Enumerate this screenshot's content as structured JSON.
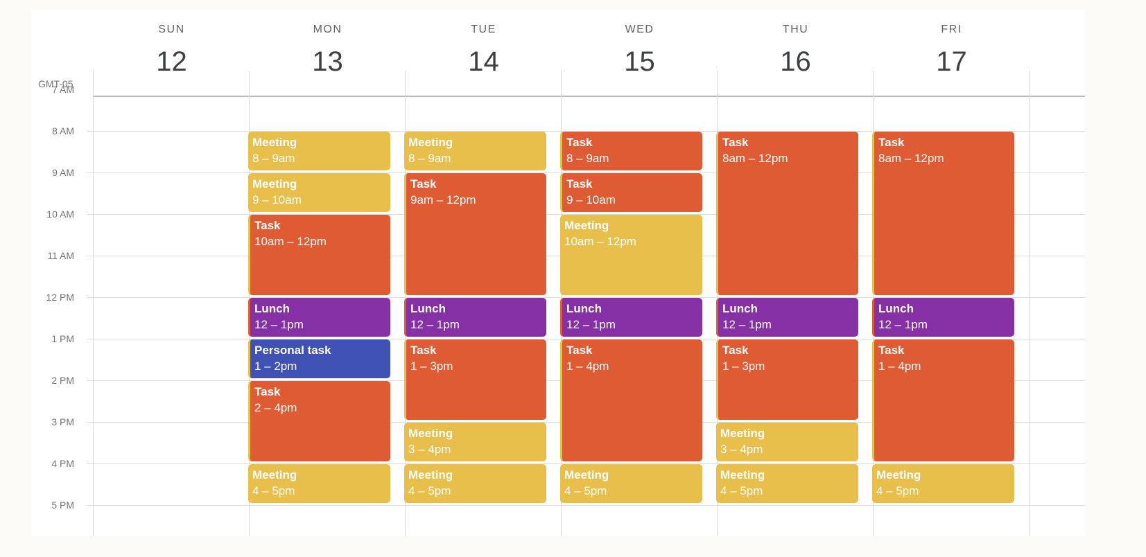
{
  "timezone": "GMT-05",
  "days": [
    {
      "name": "SUN",
      "date": "12"
    },
    {
      "name": "MON",
      "date": "13"
    },
    {
      "name": "TUE",
      "date": "14"
    },
    {
      "name": "WED",
      "date": "15"
    },
    {
      "name": "THU",
      "date": "16"
    },
    {
      "name": "FRI",
      "date": "17"
    }
  ],
  "hours": [
    "7 AM",
    "8 AM",
    "9 AM",
    "10 AM",
    "11 AM",
    "12 PM",
    "1 PM",
    "2 PM",
    "3 PM",
    "4 PM",
    "5 PM"
  ],
  "colors": {
    "meeting": "#e8bf4b",
    "task": "#df5b33",
    "lunch": "#8630a6",
    "personal": "#4051b4"
  },
  "events": [
    {
      "day": 1,
      "start": 8,
      "end": 9,
      "type": "meeting",
      "title": "Meeting",
      "time": "8 – 9am"
    },
    {
      "day": 1,
      "start": 9,
      "end": 10,
      "type": "meeting",
      "title": "Meeting",
      "time": "9 – 10am"
    },
    {
      "day": 1,
      "start": 10,
      "end": 12,
      "type": "task",
      "title": "Task",
      "time": "10am – 12pm"
    },
    {
      "day": 1,
      "start": 12,
      "end": 13,
      "type": "lunch",
      "title": "Lunch",
      "time": "12 – 1pm"
    },
    {
      "day": 1,
      "start": 13,
      "end": 14,
      "type": "personal",
      "title": "Personal task",
      "time": "1 – 2pm"
    },
    {
      "day": 1,
      "start": 14,
      "end": 16,
      "type": "task",
      "title": "Task",
      "time": "2 – 4pm"
    },
    {
      "day": 1,
      "start": 16,
      "end": 17,
      "type": "meeting",
      "title": "Meeting",
      "time": "4 – 5pm"
    },
    {
      "day": 2,
      "start": 8,
      "end": 9,
      "type": "meeting",
      "title": "Meeting",
      "time": "8 – 9am"
    },
    {
      "day": 2,
      "start": 9,
      "end": 12,
      "type": "task",
      "title": "Task",
      "time": "9am – 12pm"
    },
    {
      "day": 2,
      "start": 12,
      "end": 13,
      "type": "lunch",
      "title": "Lunch",
      "time": "12 – 1pm"
    },
    {
      "day": 2,
      "start": 13,
      "end": 15,
      "type": "task",
      "title": "Task",
      "time": "1 – 3pm"
    },
    {
      "day": 2,
      "start": 15,
      "end": 16,
      "type": "meeting",
      "title": "Meeting",
      "time": "3 – 4pm"
    },
    {
      "day": 2,
      "start": 16,
      "end": 17,
      "type": "meeting",
      "title": "Meeting",
      "time": "4 – 5pm"
    },
    {
      "day": 3,
      "start": 8,
      "end": 9,
      "type": "task",
      "title": "Task",
      "time": "8 – 9am"
    },
    {
      "day": 3,
      "start": 9,
      "end": 10,
      "type": "task",
      "title": "Task",
      "time": "9 – 10am"
    },
    {
      "day": 3,
      "start": 10,
      "end": 12,
      "type": "meeting",
      "title": "Meeting",
      "time": "10am – 12pm"
    },
    {
      "day": 3,
      "start": 12,
      "end": 13,
      "type": "lunch",
      "title": "Lunch",
      "time": "12 – 1pm"
    },
    {
      "day": 3,
      "start": 13,
      "end": 16,
      "type": "task",
      "title": "Task",
      "time": "1 – 4pm"
    },
    {
      "day": 3,
      "start": 16,
      "end": 17,
      "type": "meeting",
      "title": "Meeting",
      "time": "4 – 5pm"
    },
    {
      "day": 4,
      "start": 8,
      "end": 12,
      "type": "task",
      "title": "Task",
      "time": "8am – 12pm"
    },
    {
      "day": 4,
      "start": 12,
      "end": 13,
      "type": "lunch",
      "title": "Lunch",
      "time": "12 – 1pm"
    },
    {
      "day": 4,
      "start": 13,
      "end": 15,
      "type": "task",
      "title": "Task",
      "time": "1 – 3pm"
    },
    {
      "day": 4,
      "start": 15,
      "end": 16,
      "type": "meeting",
      "title": "Meeting",
      "time": "3 – 4pm"
    },
    {
      "day": 4,
      "start": 16,
      "end": 17,
      "type": "meeting",
      "title": "Meeting",
      "time": "4 – 5pm"
    },
    {
      "day": 5,
      "start": 8,
      "end": 12,
      "type": "task",
      "title": "Task",
      "time": "8am – 12pm"
    },
    {
      "day": 5,
      "start": 12,
      "end": 13,
      "type": "lunch",
      "title": "Lunch",
      "time": "12 – 1pm"
    },
    {
      "day": 5,
      "start": 13,
      "end": 16,
      "type": "task",
      "title": "Task",
      "time": "1 – 4pm"
    },
    {
      "day": 5,
      "start": 16,
      "end": 17,
      "type": "meeting",
      "title": "Meeting",
      "time": "4 – 5pm"
    }
  ]
}
